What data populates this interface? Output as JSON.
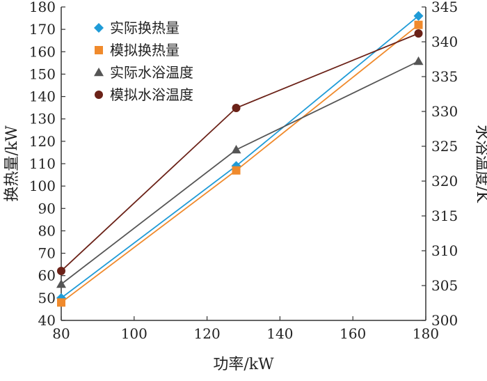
{
  "chart_data": {
    "type": "line",
    "title": "",
    "xlabel": "功率/kW",
    "ylabel_left": "换热量/kW",
    "ylabel_right": "水浴温度/K",
    "xlim": [
      80,
      180
    ],
    "ylim_left": [
      40,
      180
    ],
    "ylim_right": [
      300,
      345
    ],
    "xticks": [
      80,
      100,
      120,
      140,
      160,
      180
    ],
    "yticks_left": [
      40,
      50,
      60,
      70,
      80,
      90,
      100,
      110,
      120,
      130,
      140,
      150,
      160,
      170,
      180
    ],
    "yticks_right": [
      300,
      305,
      310,
      315,
      320,
      325,
      330,
      335,
      340,
      345
    ],
    "grid": false,
    "legend_position": "top-left",
    "series": [
      {
        "name": "实际换热量",
        "axis": "left",
        "marker": "diamond",
        "color": "#1f9bd7",
        "x": [
          80,
          128,
          178
        ],
        "y": [
          50,
          109,
          176
        ]
      },
      {
        "name": "模拟换热量",
        "axis": "left",
        "marker": "square",
        "color": "#f08a2c",
        "x": [
          80,
          128,
          178
        ],
        "y": [
          48,
          107,
          172
        ]
      },
      {
        "name": "实际水浴温度",
        "axis": "right",
        "marker": "triangle",
        "color": "#555555",
        "x": [
          80,
          128,
          178
        ],
        "y": [
          305.2,
          324.5,
          337.2
        ]
      },
      {
        "name": "模拟水浴温度",
        "axis": "right",
        "marker": "circle",
        "color": "#6b2218",
        "x": [
          80,
          128,
          178
        ],
        "y": [
          307.1,
          330.5,
          341.2
        ]
      }
    ]
  }
}
